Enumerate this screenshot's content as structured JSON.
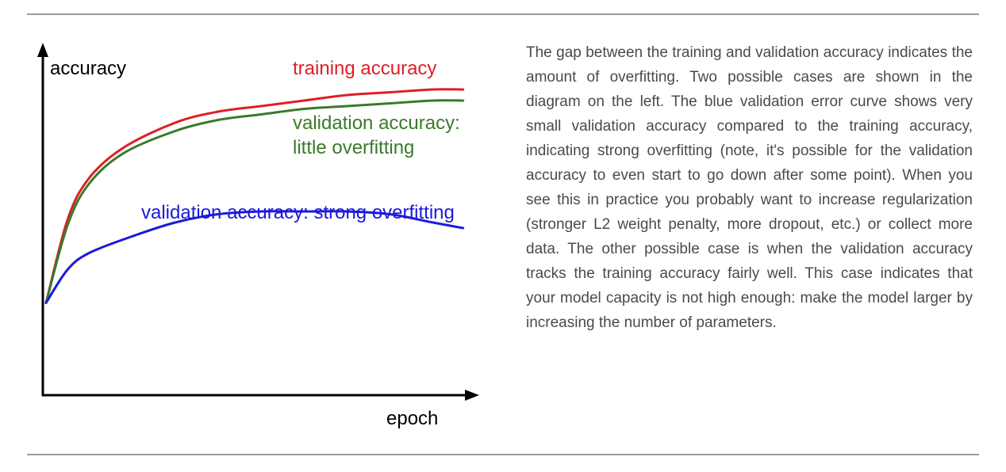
{
  "description": "The gap between the training and validation accuracy indicates the amount of overfitting. Two possible cases are shown in the diagram on the left. The blue validation error curve shows very small validation accuracy compared to the training accuracy, indicating strong overfitting (note, it's possible for the validation accuracy to even start to go down after some point). When you see this in practice you probably want to increase regularization (stronger L2 weight penalty, more dropout, etc.) or collect more data. The other possible case is when the validation accuracy tracks the training accuracy fairly well. This case indicates that your model capacity is not high enough: make the model larger by increasing the number of parameters.",
  "colors": {
    "training": "#dd1f26",
    "validation_little": "#3a7a2a",
    "validation_strong": "#1a1adb",
    "axis": "#000000",
    "text": "#4a4a4a",
    "rule": "#9a9a9a"
  },
  "chart_data": {
    "type": "line",
    "xlabel": "epoch",
    "ylabel": "accuracy",
    "xlim": [
      0,
      100
    ],
    "ylim": [
      0,
      100
    ],
    "ticks": "none",
    "grid": false,
    "series": [
      {
        "name": "training accuracy",
        "color": "#dd1f26",
        "x": [
          0,
          5,
          10,
          18,
          30,
          40,
          50,
          60,
          70,
          80,
          90,
          97
        ],
        "y": [
          15,
          45,
          60,
          71,
          80,
          84,
          86,
          88,
          90,
          91,
          92,
          92
        ],
        "label_lines": [
          "training accuracy"
        ]
      },
      {
        "name": "validation accuracy: little overfitting",
        "color": "#3a7a2a",
        "x": [
          0,
          5,
          10,
          18,
          30,
          40,
          50,
          60,
          70,
          80,
          90,
          97
        ],
        "y": [
          15,
          43,
          58,
          69,
          77,
          81,
          83,
          85,
          86,
          87,
          88,
          88
        ],
        "label_lines": [
          "validation accuracy:",
          "little overfitting"
        ]
      },
      {
        "name": "validation accuracy: strong overfitting",
        "color": "#1a1adb",
        "x": [
          0,
          5,
          10,
          20,
          30,
          40,
          50,
          60,
          70,
          80,
          90,
          97
        ],
        "y": [
          15,
          27,
          33,
          39,
          44,
          47,
          48,
          48,
          48,
          47,
          44,
          42
        ],
        "label_lines": [
          "validation accuracy: strong overfitting"
        ]
      }
    ]
  }
}
